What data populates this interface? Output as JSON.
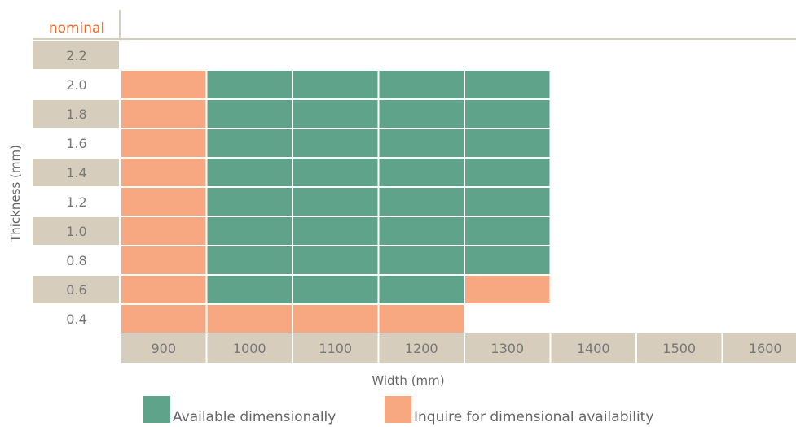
{
  "chart_data": {
    "type": "heatmap",
    "header_label": "nominal",
    "xlabel": "Width (mm)",
    "ylabel": "Thickness (mm)",
    "x_categories": [
      "900",
      "1000",
      "1100",
      "1200",
      "1300",
      "1400",
      "1500",
      "1600"
    ],
    "y_categories": [
      "2.2",
      "2.0",
      "1.8",
      "1.6",
      "1.4",
      "1.2",
      "1.0",
      "0.8",
      "0.6",
      "0.4"
    ],
    "status_legend": [
      {
        "key": "available",
        "label": "Available dimensionally",
        "color": "#5ea38a"
      },
      {
        "key": "inquire",
        "label": "Inquire for dimensional availability",
        "color": "#f8a880"
      }
    ],
    "cells": [
      {
        "thickness": "2.0",
        "status": [
          "inquire",
          "available",
          "available",
          "available",
          "available",
          null,
          null,
          null
        ]
      },
      {
        "thickness": "1.8",
        "status": [
          "inquire",
          "available",
          "available",
          "available",
          "available",
          null,
          null,
          null
        ]
      },
      {
        "thickness": "1.6",
        "status": [
          "inquire",
          "available",
          "available",
          "available",
          "available",
          null,
          null,
          null
        ]
      },
      {
        "thickness": "1.4",
        "status": [
          "inquire",
          "available",
          "available",
          "available",
          "available",
          null,
          null,
          null
        ]
      },
      {
        "thickness": "1.2",
        "status": [
          "inquire",
          "available",
          "available",
          "available",
          "available",
          null,
          null,
          null
        ]
      },
      {
        "thickness": "1.0",
        "status": [
          "inquire",
          "available",
          "available",
          "available",
          "available",
          null,
          null,
          null
        ]
      },
      {
        "thickness": "0.8",
        "status": [
          "inquire",
          "available",
          "available",
          "available",
          "available",
          null,
          null,
          null
        ]
      },
      {
        "thickness": "0.6",
        "status": [
          "inquire",
          "available",
          "available",
          "available",
          "inquire",
          null,
          null,
          null
        ]
      },
      {
        "thickness": "0.4",
        "status": [
          "inquire",
          "inquire",
          "inquire",
          "inquire",
          null,
          null,
          null,
          null
        ]
      }
    ],
    "shaded_label_color": "#d6cdbd",
    "grid_line_color": "#d6cdbd"
  }
}
